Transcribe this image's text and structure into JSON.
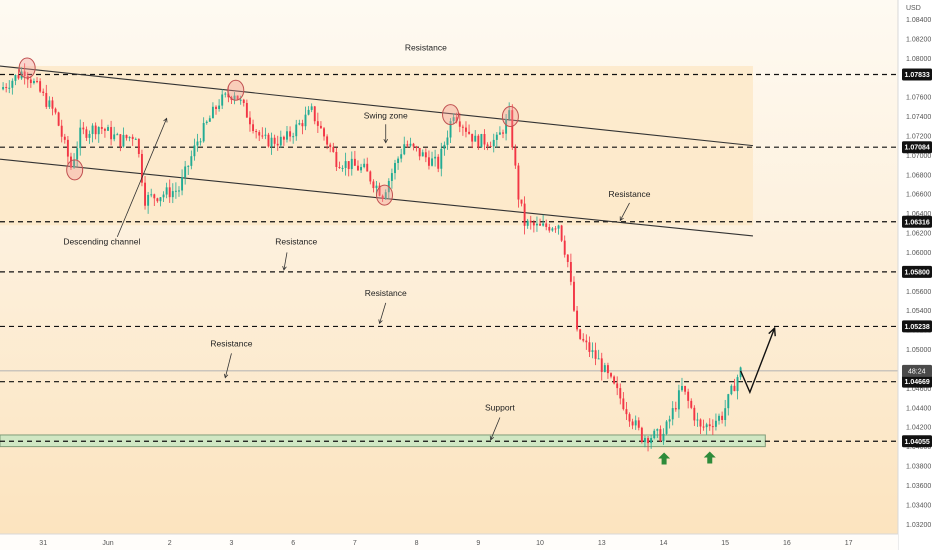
{
  "chart_data": {
    "type": "candlestick",
    "symbol_currency": "USD",
    "ylim": [
      1.031,
      1.086
    ],
    "y_ticks": [
      1.084,
      1.082,
      1.08,
      1.078,
      1.076,
      1.074,
      1.072,
      1.07,
      1.068,
      1.066,
      1.064,
      1.062,
      1.06,
      1.058,
      1.056,
      1.054,
      1.052,
      1.05,
      1.048,
      1.046,
      1.044,
      1.042,
      1.04,
      1.038,
      1.036,
      1.034,
      1.032
    ],
    "x_ticks": [
      {
        "label": "31",
        "x": 0.7
      },
      {
        "label": "Jun",
        "x": 1.75
      },
      {
        "label": "2",
        "x": 2.75
      },
      {
        "label": "3",
        "x": 3.75
      },
      {
        "label": "6",
        "x": 4.75
      },
      {
        "label": "7",
        "x": 5.75
      },
      {
        "label": "8",
        "x": 6.75
      },
      {
        "label": "9",
        "x": 7.75
      },
      {
        "label": "10",
        "x": 8.75
      },
      {
        "label": "13",
        "x": 9.75
      },
      {
        "label": "14",
        "x": 10.75
      },
      {
        "label": "15",
        "x": 11.75
      },
      {
        "label": "16",
        "x": 12.75
      },
      {
        "label": "17",
        "x": 13.75
      }
    ],
    "xlim": [
      0,
      14.55
    ],
    "horizontal_levels": [
      {
        "value": 1.07833,
        "label": "1.07833"
      },
      {
        "value": 1.07084,
        "label": "1.07084"
      },
      {
        "value": 1.06316,
        "label": "1.06316"
      },
      {
        "value": 1.058,
        "label": "1.05800"
      },
      {
        "value": 1.05238,
        "label": "1.05238"
      },
      {
        "value": 1.04669,
        "label": "1.04669"
      },
      {
        "value": 1.04055,
        "label": "1.04055"
      }
    ],
    "current_price_tag": "48:24",
    "current_price_value": 1.0478,
    "channel": {
      "upper": [
        [
          0,
          1.0792
        ],
        [
          12.2,
          1.071
        ]
      ],
      "lower": [
        [
          0,
          1.0696
        ],
        [
          12.2,
          1.0617
        ]
      ],
      "zone_top": 1.0792,
      "zone_bottom": 1.0628,
      "zone_x_end": 12.2
    },
    "support_zone": {
      "top": 1.0412,
      "bottom": 1.04,
      "x_end": 12.4
    },
    "anchors": [
      [
        0,
        1.0768
      ],
      [
        0.4,
        1.0788
      ],
      [
        0.9,
        1.0742
      ],
      [
        1.15,
        1.0688
      ],
      [
        1.3,
        1.0722
      ],
      [
        1.6,
        1.073
      ],
      [
        1.95,
        1.0715
      ],
      [
        2.2,
        1.0722
      ],
      [
        2.35,
        1.0655
      ],
      [
        2.9,
        1.0665
      ],
      [
        3.2,
        1.0715
      ],
      [
        3.55,
        1.0755
      ],
      [
        3.8,
        1.0765
      ],
      [
        4.25,
        1.0715
      ],
      [
        4.6,
        1.0715
      ],
      [
        5.05,
        1.0745
      ],
      [
        5.45,
        1.0695
      ],
      [
        5.9,
        1.0685
      ],
      [
        6.2,
        1.066
      ],
      [
        6.55,
        1.0712
      ],
      [
        7.1,
        1.069
      ],
      [
        7.35,
        1.0745
      ],
      [
        7.7,
        1.0715
      ],
      [
        8.05,
        1.0715
      ],
      [
        8.25,
        1.074
      ],
      [
        8.4,
        1.0658
      ],
      [
        8.5,
        1.063
      ],
      [
        8.75,
        1.0625
      ],
      [
        9.05,
        1.063
      ],
      [
        9.2,
        1.059
      ],
      [
        9.35,
        1.0515
      ],
      [
        9.7,
        1.0488
      ],
      [
        10.05,
        1.045
      ],
      [
        10.4,
        1.041
      ],
      [
        10.75,
        1.0412
      ],
      [
        11.05,
        1.046
      ],
      [
        11.35,
        1.0418
      ],
      [
        11.7,
        1.0432
      ],
      [
        11.95,
        1.0472
      ],
      [
        12.0,
        1.0478
      ]
    ],
    "forecast_path": [
      [
        12.0,
        1.0478
      ],
      [
        12.15,
        1.0456
      ],
      [
        12.55,
        1.0522
      ]
    ],
    "circle_markers": [
      [
        0.44,
        1.079
      ],
      [
        1.21,
        1.0685
      ],
      [
        3.82,
        1.0767
      ],
      [
        6.23,
        1.0659
      ],
      [
        7.3,
        1.0742
      ],
      [
        8.27,
        1.074
      ]
    ],
    "up_arrows": [
      [
        10.76,
        1.0394
      ],
      [
        11.5,
        1.0395
      ]
    ],
    "annotations": [
      {
        "text": "Resistance",
        "x": 6.9,
        "y": 1.0808,
        "arrow": null
      },
      {
        "text": "Swing  zone",
        "x": 6.25,
        "y": 1.0738,
        "arrow": [
          [
            6.25,
            1.0732
          ],
          [
            6.25,
            1.0713
          ]
        ]
      },
      {
        "text": "Resistance",
        "x": 10.2,
        "y": 1.0657,
        "arrow": [
          [
            10.2,
            1.0651
          ],
          [
            10.05,
            1.0633
          ]
        ]
      },
      {
        "text": "Descending channel",
        "x": 1.65,
        "y": 1.0608,
        "arrow": [
          [
            1.9,
            1.0616
          ],
          [
            2.7,
            1.0738
          ]
        ]
      },
      {
        "text": "Resistance",
        "x": 4.8,
        "y": 1.0608,
        "arrow": [
          [
            4.65,
            1.06
          ],
          [
            4.6,
            1.0582
          ]
        ]
      },
      {
        "text": "Resistance",
        "x": 6.25,
        "y": 1.0555,
        "arrow": [
          [
            6.25,
            1.0548
          ],
          [
            6.15,
            1.0527
          ]
        ]
      },
      {
        "text": "Resistance",
        "x": 3.75,
        "y": 1.0503,
        "arrow": [
          [
            3.75,
            1.0496
          ],
          [
            3.65,
            1.0471
          ]
        ]
      },
      {
        "text": "Support",
        "x": 8.1,
        "y": 1.0437,
        "arrow": [
          [
            8.1,
            1.043
          ],
          [
            7.95,
            1.0407
          ]
        ]
      }
    ]
  },
  "colors": {
    "up_candle": "#22ab94",
    "down_candle": "#f23645",
    "channel_zone": "#fce7c4",
    "support_zone_fill": "#c9e7c3",
    "support_zone_stroke": "#6b8f6b",
    "level_line": "#111111",
    "axis_bg": "#ffffff",
    "arrow_green": "#2e8b3a",
    "circle_stroke": "#c05050",
    "circle_fill": "rgba(242,150,150,0.35)",
    "price_tag_bg": "#4a4a4a",
    "price_tag_text": "#ffffff"
  }
}
